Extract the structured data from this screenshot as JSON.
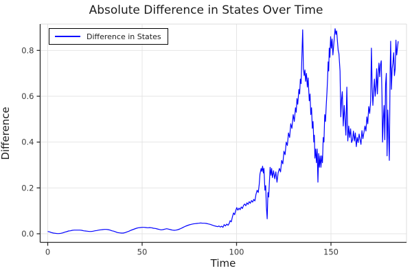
{
  "title": "Absolute Difference in States Over Time",
  "legend": {
    "label": "Difference in States"
  },
  "colors": {
    "line": "#0000ff",
    "grid": "#e4e4e4",
    "frame_light": "#dcdcdc",
    "spine": "#2b2b2b",
    "tick_text": "#3a3a3a",
    "text": "#1c1c1c",
    "background": "#ffffff"
  },
  "chart_data": {
    "type": "line",
    "title": "Absolute Difference in States Over Time",
    "xlabel": "Time",
    "ylabel": "Difference",
    "series_name": "Difference in States",
    "xlim": [
      -4,
      190
    ],
    "ylim": [
      -0.0375,
      0.915
    ],
    "xticks": [
      {
        "v": 0,
        "label": "0"
      },
      {
        "v": 50,
        "label": "50"
      },
      {
        "v": 100,
        "label": "100"
      },
      {
        "v": 150,
        "label": "150"
      }
    ],
    "yticks": [
      {
        "v": 0.0,
        "label": "0.0"
      },
      {
        "v": 0.2,
        "label": "0.2"
      },
      {
        "v": 0.4,
        "label": "0.4"
      },
      {
        "v": 0.6,
        "label": "0.6"
      },
      {
        "v": 0.8,
        "label": "0.8"
      }
    ],
    "grid": true,
    "legend_position": "top-left",
    "points": [
      [
        0,
        0.01
      ],
      [
        1,
        0.008
      ],
      [
        2,
        0.005
      ],
      [
        3,
        0.003
      ],
      [
        4,
        0.002
      ],
      [
        5,
        0.001
      ],
      [
        6,
        0.001
      ],
      [
        7,
        0.002
      ],
      [
        8,
        0.004
      ],
      [
        9,
        0.007
      ],
      [
        10,
        0.009
      ],
      [
        11,
        0.012
      ],
      [
        12,
        0.013
      ],
      [
        13,
        0.015
      ],
      [
        14,
        0.016
      ],
      [
        15,
        0.016
      ],
      [
        16,
        0.016
      ],
      [
        17,
        0.016
      ],
      [
        18,
        0.015
      ],
      [
        19,
        0.013
      ],
      [
        20,
        0.012
      ],
      [
        21,
        0.011
      ],
      [
        22,
        0.01
      ],
      [
        23,
        0.01
      ],
      [
        24,
        0.011
      ],
      [
        25,
        0.013
      ],
      [
        26,
        0.014
      ],
      [
        27,
        0.016
      ],
      [
        28,
        0.017
      ],
      [
        29,
        0.018
      ],
      [
        30,
        0.019
      ],
      [
        31,
        0.019
      ],
      [
        32,
        0.018
      ],
      [
        33,
        0.016
      ],
      [
        34,
        0.013
      ],
      [
        35,
        0.011
      ],
      [
        36,
        0.008
      ],
      [
        37,
        0.005
      ],
      [
        38,
        0.004
      ],
      [
        39,
        0.003
      ],
      [
        40,
        0.003
      ],
      [
        41,
        0.005
      ],
      [
        42,
        0.008
      ],
      [
        43,
        0.011
      ],
      [
        44,
        0.015
      ],
      [
        45,
        0.018
      ],
      [
        46,
        0.021
      ],
      [
        47,
        0.024
      ],
      [
        48,
        0.026
      ],
      [
        49,
        0.027
      ],
      [
        50,
        0.028
      ],
      [
        51,
        0.028
      ],
      [
        52,
        0.027
      ],
      [
        53,
        0.026
      ],
      [
        54,
        0.027
      ],
      [
        55,
        0.026
      ],
      [
        56,
        0.024
      ],
      [
        57,
        0.023
      ],
      [
        58,
        0.021
      ],
      [
        59,
        0.019
      ],
      [
        60,
        0.017
      ],
      [
        61,
        0.018
      ],
      [
        62,
        0.02
      ],
      [
        63,
        0.022
      ],
      [
        64,
        0.02
      ],
      [
        65,
        0.018
      ],
      [
        66,
        0.016
      ],
      [
        67,
        0.015
      ],
      [
        68,
        0.016
      ],
      [
        69,
        0.018
      ],
      [
        70,
        0.021
      ],
      [
        71,
        0.025
      ],
      [
        72,
        0.029
      ],
      [
        73,
        0.033
      ],
      [
        74,
        0.036
      ],
      [
        75,
        0.039
      ],
      [
        76,
        0.041
      ],
      [
        77,
        0.043
      ],
      [
        78,
        0.044
      ],
      [
        79,
        0.045
      ],
      [
        80,
        0.046
      ],
      [
        81,
        0.047
      ],
      [
        82,
        0.046
      ],
      [
        83,
        0.046
      ],
      [
        84,
        0.045
      ],
      [
        85,
        0.043
      ],
      [
        86,
        0.041
      ],
      [
        87,
        0.038
      ],
      [
        88,
        0.035
      ],
      [
        89,
        0.033
      ],
      [
        90,
        0.031
      ],
      [
        90.7,
        0.034
      ],
      [
        91.4,
        0.029
      ],
      [
        92.1,
        0.033
      ],
      [
        92.8,
        0.028
      ],
      [
        93.4,
        0.04
      ],
      [
        94.1,
        0.034
      ],
      [
        94.8,
        0.042
      ],
      [
        95.5,
        0.037
      ],
      [
        96.1,
        0.045
      ],
      [
        96.6,
        0.057
      ],
      [
        97.2,
        0.052
      ],
      [
        97.8,
        0.073
      ],
      [
        98.4,
        0.091
      ],
      [
        99.0,
        0.083
      ],
      [
        99.5,
        0.1
      ],
      [
        100.1,
        0.114
      ],
      [
        100.7,
        0.103
      ],
      [
        101.3,
        0.112
      ],
      [
        101.9,
        0.105
      ],
      [
        102.5,
        0.117
      ],
      [
        103.1,
        0.11
      ],
      [
        103.7,
        0.124
      ],
      [
        104.3,
        0.13
      ],
      [
        104.9,
        0.122
      ],
      [
        105.5,
        0.135
      ],
      [
        106.1,
        0.128
      ],
      [
        106.7,
        0.14
      ],
      [
        107.3,
        0.133
      ],
      [
        107.9,
        0.145
      ],
      [
        108.5,
        0.138
      ],
      [
        109.1,
        0.15
      ],
      [
        109.7,
        0.143
      ],
      [
        110.3,
        0.172
      ],
      [
        110.9,
        0.19
      ],
      [
        111.5,
        0.18
      ],
      [
        112.0,
        0.215
      ],
      [
        112.4,
        0.26
      ],
      [
        113.0,
        0.285
      ],
      [
        113.4,
        0.272
      ],
      [
        113.8,
        0.295
      ],
      [
        114.2,
        0.265
      ],
      [
        114.5,
        0.285
      ],
      [
        115.0,
        0.19
      ],
      [
        115.4,
        0.21
      ],
      [
        115.8,
        0.12
      ],
      [
        116.2,
        0.065
      ],
      [
        116.6,
        0.18
      ],
      [
        117.0,
        0.16
      ],
      [
        117.4,
        0.23
      ],
      [
        117.8,
        0.29
      ],
      [
        118.2,
        0.255
      ],
      [
        118.6,
        0.285
      ],
      [
        119.0,
        0.245
      ],
      [
        119.6,
        0.275
      ],
      [
        120.2,
        0.24
      ],
      [
        120.8,
        0.27
      ],
      [
        121.4,
        0.225
      ],
      [
        122.0,
        0.265
      ],
      [
        122.7,
        0.285
      ],
      [
        123.3,
        0.27
      ],
      [
        123.9,
        0.32
      ],
      [
        124.5,
        0.305
      ],
      [
        125.1,
        0.36
      ],
      [
        125.7,
        0.345
      ],
      [
        126.3,
        0.4
      ],
      [
        126.9,
        0.385
      ],
      [
        127.5,
        0.44
      ],
      [
        128.1,
        0.42
      ],
      [
        128.7,
        0.48
      ],
      [
        129.3,
        0.46
      ],
      [
        130.0,
        0.52
      ],
      [
        130.6,
        0.49
      ],
      [
        131.2,
        0.55
      ],
      [
        131.6,
        0.53
      ],
      [
        132.0,
        0.59
      ],
      [
        132.4,
        0.565
      ],
      [
        133.0,
        0.63
      ],
      [
        133.4,
        0.61
      ],
      [
        133.8,
        0.675
      ],
      [
        134.2,
        0.655
      ],
      [
        134.6,
        0.78
      ],
      [
        135.0,
        0.89
      ],
      [
        135.4,
        0.72
      ],
      [
        135.8,
        0.69
      ],
      [
        136.2,
        0.715
      ],
      [
        136.6,
        0.665
      ],
      [
        137.0,
        0.7
      ],
      [
        137.5,
        0.64
      ],
      [
        137.9,
        0.68
      ],
      [
        138.5,
        0.58
      ],
      [
        138.9,
        0.61
      ],
      [
        139.3,
        0.52
      ],
      [
        139.7,
        0.55
      ],
      [
        140.1,
        0.46
      ],
      [
        140.5,
        0.49
      ],
      [
        140.9,
        0.4
      ],
      [
        141.2,
        0.43
      ],
      [
        141.5,
        0.33
      ],
      [
        141.9,
        0.37
      ],
      [
        142.3,
        0.31
      ],
      [
        142.7,
        0.37
      ],
      [
        143.1,
        0.225
      ],
      [
        143.5,
        0.35
      ],
      [
        143.9,
        0.29
      ],
      [
        144.3,
        0.34
      ],
      [
        144.7,
        0.29
      ],
      [
        145.1,
        0.34
      ],
      [
        145.5,
        0.31
      ],
      [
        145.9,
        0.42
      ],
      [
        146.3,
        0.4
      ],
      [
        146.7,
        0.52
      ],
      [
        147.1,
        0.49
      ],
      [
        147.5,
        0.56
      ],
      [
        147.9,
        0.62
      ],
      [
        148.2,
        0.68
      ],
      [
        148.5,
        0.75
      ],
      [
        148.8,
        0.71
      ],
      [
        149.1,
        0.81
      ],
      [
        149.4,
        0.77
      ],
      [
        149.8,
        0.86
      ],
      [
        150.2,
        0.81
      ],
      [
        150.6,
        0.85
      ],
      [
        151.0,
        0.78
      ],
      [
        151.4,
        0.82
      ],
      [
        151.8,
        0.86
      ],
      [
        152.2,
        0.895
      ],
      [
        152.6,
        0.87
      ],
      [
        153.0,
        0.885
      ],
      [
        153.4,
        0.84
      ],
      [
        153.8,
        0.8
      ],
      [
        154.2,
        0.785
      ],
      [
        154.8,
        0.71
      ],
      [
        155.2,
        0.51
      ],
      [
        155.6,
        0.585
      ],
      [
        156.0,
        0.62
      ],
      [
        156.5,
        0.47
      ],
      [
        157.0,
        0.56
      ],
      [
        157.4,
        0.505
      ],
      [
        157.9,
        0.43
      ],
      [
        158.4,
        0.64
      ],
      [
        158.9,
        0.405
      ],
      [
        159.4,
        0.47
      ],
      [
        159.9,
        0.42
      ],
      [
        160.4,
        0.458
      ],
      [
        160.9,
        0.398
      ],
      [
        161.4,
        0.41
      ],
      [
        161.9,
        0.448
      ],
      [
        162.4,
        0.405
      ],
      [
        162.9,
        0.44
      ],
      [
        163.4,
        0.38
      ],
      [
        163.9,
        0.42
      ],
      [
        164.4,
        0.398
      ],
      [
        164.9,
        0.435
      ],
      [
        165.4,
        0.41
      ],
      [
        165.9,
        0.39
      ],
      [
        166.4,
        0.45
      ],
      [
        166.9,
        0.415
      ],
      [
        167.4,
        0.44
      ],
      [
        168.0,
        0.47
      ],
      [
        168.5,
        0.448
      ],
      [
        169.0,
        0.51
      ],
      [
        169.5,
        0.48
      ],
      [
        170.0,
        0.555
      ],
      [
        170.5,
        0.525
      ],
      [
        171.0,
        0.58
      ],
      [
        171.4,
        0.81
      ],
      [
        171.8,
        0.64
      ],
      [
        172.2,
        0.56
      ],
      [
        172.6,
        0.62
      ],
      [
        173.0,
        0.675
      ],
      [
        173.4,
        0.6
      ],
      [
        173.8,
        0.64
      ],
      [
        174.2,
        0.72
      ],
      [
        174.6,
        0.61
      ],
      [
        175.0,
        0.7
      ],
      [
        175.4,
        0.745
      ],
      [
        175.8,
        0.685
      ],
      [
        176.2,
        0.735
      ],
      [
        176.6,
        0.755
      ],
      [
        177.0,
        0.6
      ],
      [
        177.3,
        0.4
      ],
      [
        177.7,
        0.5
      ],
      [
        178.1,
        0.56
      ],
      [
        178.5,
        0.41
      ],
      [
        178.9,
        0.65
      ],
      [
        179.3,
        0.7
      ],
      [
        179.7,
        0.34
      ],
      [
        180.1,
        0.54
      ],
      [
        180.5,
        0.44
      ],
      [
        180.9,
        0.32
      ],
      [
        181.3,
        0.7
      ],
      [
        181.6,
        0.84
      ],
      [
        182.0,
        0.63
      ],
      [
        182.4,
        0.72
      ],
      [
        182.8,
        0.745
      ],
      [
        183.2,
        0.79
      ],
      [
        183.6,
        0.69
      ],
      [
        184.0,
        0.72
      ],
      [
        184.4,
        0.845
      ],
      [
        184.8,
        0.78
      ],
      [
        185.2,
        0.81
      ],
      [
        185.6,
        0.84
      ]
    ]
  }
}
